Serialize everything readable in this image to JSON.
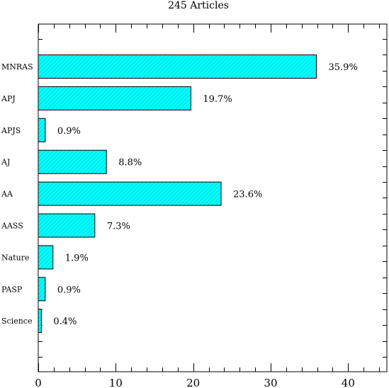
{
  "chart_data": {
    "type": "bar",
    "orientation": "horizontal",
    "title": "245 Articles",
    "categories": [
      "MNRAS",
      "APJ",
      "APJS",
      "AJ",
      "AA",
      "AASS",
      "Nature",
      "PASP",
      "Science"
    ],
    "values": [
      35.9,
      19.7,
      0.9,
      8.8,
      23.6,
      7.3,
      1.9,
      0.9,
      0.4
    ],
    "value_labels": [
      "35.9%",
      "19.7%",
      "0.9%",
      "8.8%",
      "23.6%",
      "7.3%",
      "1.9%",
      "0.9%",
      "0.4%"
    ],
    "xlim": [
      0,
      45
    ],
    "xticks": [
      0,
      10,
      20,
      30,
      40
    ],
    "xtick_labels": [
      "0",
      "10",
      "20",
      "30",
      "40"
    ],
    "xlabel": "",
    "ylabel": "",
    "grid": false,
    "colors": {
      "bar_fill": "#00ffff",
      "hatch": "#00b8b8",
      "axis": "#000000"
    }
  }
}
